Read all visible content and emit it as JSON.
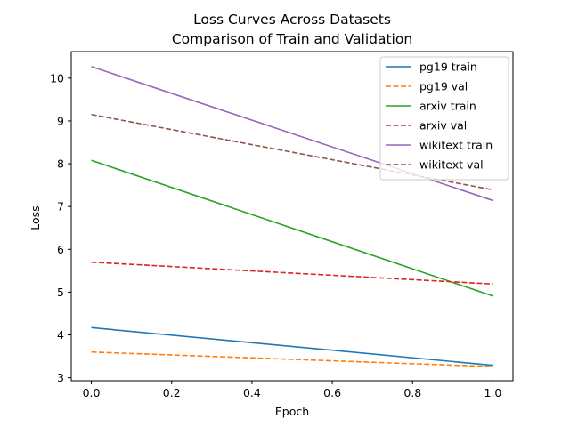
{
  "chart_data": {
    "type": "line",
    "title": "Loss Curves Across Datasets",
    "subtitle": "Comparison of Train and Validation",
    "xlabel": "Epoch",
    "ylabel": "Loss",
    "xlim": [
      -0.05,
      1.05
    ],
    "ylim": [
      2.93,
      10.62
    ],
    "x_ticks": [
      0.0,
      0.2,
      0.4,
      0.6,
      0.8,
      1.0
    ],
    "x_tick_labels": [
      "0.0",
      "0.2",
      "0.4",
      "0.6",
      "0.8",
      "1.0"
    ],
    "y_ticks": [
      3,
      4,
      5,
      6,
      7,
      8,
      9,
      10
    ],
    "y_tick_labels": [
      "3",
      "4",
      "5",
      "6",
      "7",
      "8",
      "9",
      "10"
    ],
    "grid": false,
    "legend_position": "top-right",
    "x": [
      0.0,
      1.0
    ],
    "series": [
      {
        "name": "pg19 train",
        "values": [
          4.17,
          3.29
        ],
        "color": "#1f77b4",
        "style": "solid"
      },
      {
        "name": "pg19 val",
        "values": [
          3.6,
          3.26
        ],
        "color": "#ff7f0e",
        "style": "dashed"
      },
      {
        "name": "arxiv train",
        "values": [
          8.08,
          4.91
        ],
        "color": "#2ca02c",
        "style": "solid"
      },
      {
        "name": "arxiv val",
        "values": [
          5.7,
          5.19
        ],
        "color": "#d62728",
        "style": "dashed"
      },
      {
        "name": "wikitext train",
        "values": [
          10.27,
          7.14
        ],
        "color": "#9467bd",
        "style": "solid"
      },
      {
        "name": "wikitext val",
        "values": [
          9.15,
          7.39
        ],
        "color": "#8c564b",
        "style": "dashed"
      }
    ]
  }
}
